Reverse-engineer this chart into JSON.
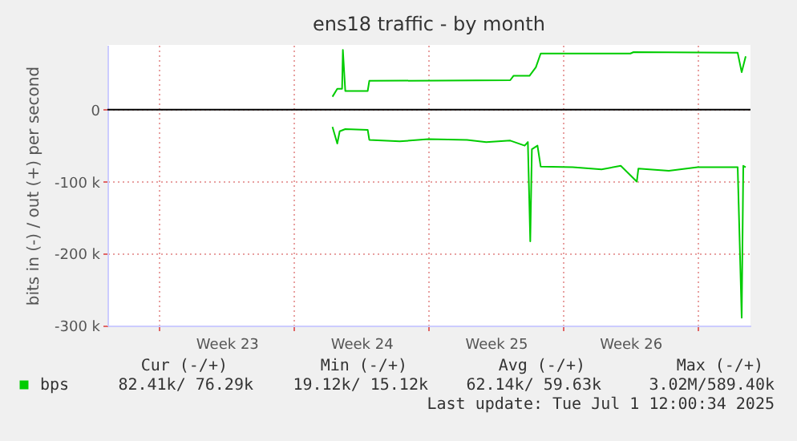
{
  "chart_data": {
    "type": "line",
    "title": "ens18 traffic - by month",
    "ylabel": "bits in (-) / out (+) per second",
    "xlim": [
      "2025-05-29T07:00",
      "2025-07-01T18:00"
    ],
    "xticks": [
      {
        "value": "2025-06-01T00:00",
        "label": null
      },
      {
        "value": "2025-06-04T12:00",
        "label": "Week 23"
      },
      {
        "value": "2025-06-08T00:00",
        "label": null
      },
      {
        "value": "2025-06-11T12:00",
        "label": "Week 24"
      },
      {
        "value": "2025-06-15T00:00",
        "label": null
      },
      {
        "value": "2025-06-18T12:00",
        "label": "Week 25"
      },
      {
        "value": "2025-06-22T00:00",
        "label": null
      },
      {
        "value": "2025-06-25T12:00",
        "label": "Week 26"
      },
      {
        "value": "2025-06-29T00:00",
        "label": null
      }
    ],
    "ylim": [
      -300000,
      90000
    ],
    "yticks": [
      {
        "value": -300000,
        "label": "-300 k"
      },
      {
        "value": -200000,
        "label": "-200 k"
      },
      {
        "value": -100000,
        "label": "-100 k"
      },
      0
    ],
    "grid": true,
    "legend": "bottom",
    "ref_lines": [
      {
        "axis": "y",
        "value": 0,
        "color": "#000000"
      }
    ],
    "series": [
      {
        "name": "bps",
        "color": "#00cc00",
        "x": [
          "2025-06-10T00:00",
          "2025-06-10T06:00",
          "2025-06-10T12:00",
          "2025-06-10T13:00",
          "2025-06-10T16:00",
          "2025-06-11T20:00",
          "2025-06-11T22:00",
          "2025-06-19T06:00",
          "2025-06-19T10:00",
          "2025-06-20T06:00",
          "2025-06-20T14:00",
          "2025-06-20T20:00",
          "2025-06-25T12:00",
          "2025-06-25T16:00",
          "2025-07-01T02:00",
          "2025-07-01T07:00",
          "2025-07-01T12:00"
        ],
        "values": [
          18000,
          29000,
          29000,
          83000,
          26000,
          26000,
          40000,
          41000,
          47000,
          47000,
          59000,
          78000,
          78000,
          80000,
          79000,
          52000,
          74000
        ]
      },
      {
        "color": "#00cc00",
        "x": [
          "2025-06-10T00:00",
          "2025-06-10T06:00",
          "2025-06-10T09:00",
          "2025-06-10T16:00",
          "2025-06-11T20:00",
          "2025-06-11T22:00",
          "2025-06-13T12:00",
          "2025-06-15T00:00",
          "2025-06-17T00:00",
          "2025-06-18T00:00",
          "2025-06-19T06:00",
          "2025-06-20T00:00",
          "2025-06-20T04:00",
          "2025-06-20T07:00",
          "2025-06-20T09:00",
          "2025-06-20T16:00",
          "2025-06-20T20:00",
          "2025-06-22T12:00",
          "2025-06-24T00:00",
          "2025-06-25T00:00",
          "2025-06-25T20:00",
          "2025-06-25T22:00",
          "2025-06-27T12:00",
          "2025-06-29T00:00",
          "2025-07-01T02:00",
          "2025-07-01T07:00",
          "2025-07-01T09:00",
          "2025-07-01T12:00"
        ],
        "values": [
          -24000,
          -47000,
          -30000,
          -27000,
          -28000,
          -42000,
          -44000,
          -41000,
          -42000,
          -45000,
          -43000,
          -50000,
          -45000,
          -183000,
          -55000,
          -50000,
          -79000,
          -80000,
          -83000,
          -78000,
          -100000,
          -82000,
          -85000,
          -80000,
          -80000,
          -289000,
          -78000,
          -80000
        ]
      }
    ],
    "annotations": [
      "Cur (-/+)",
      "Min (-/+)",
      "Avg (-/+)",
      "Max (-/+)",
      "82.41k/ 76.29k",
      "19.12k/ 15.12k",
      "62.14k/ 59.63k",
      "3.02M/589.40k",
      "Last update: Tue Jul  1 12:00:34 2025"
    ]
  }
}
